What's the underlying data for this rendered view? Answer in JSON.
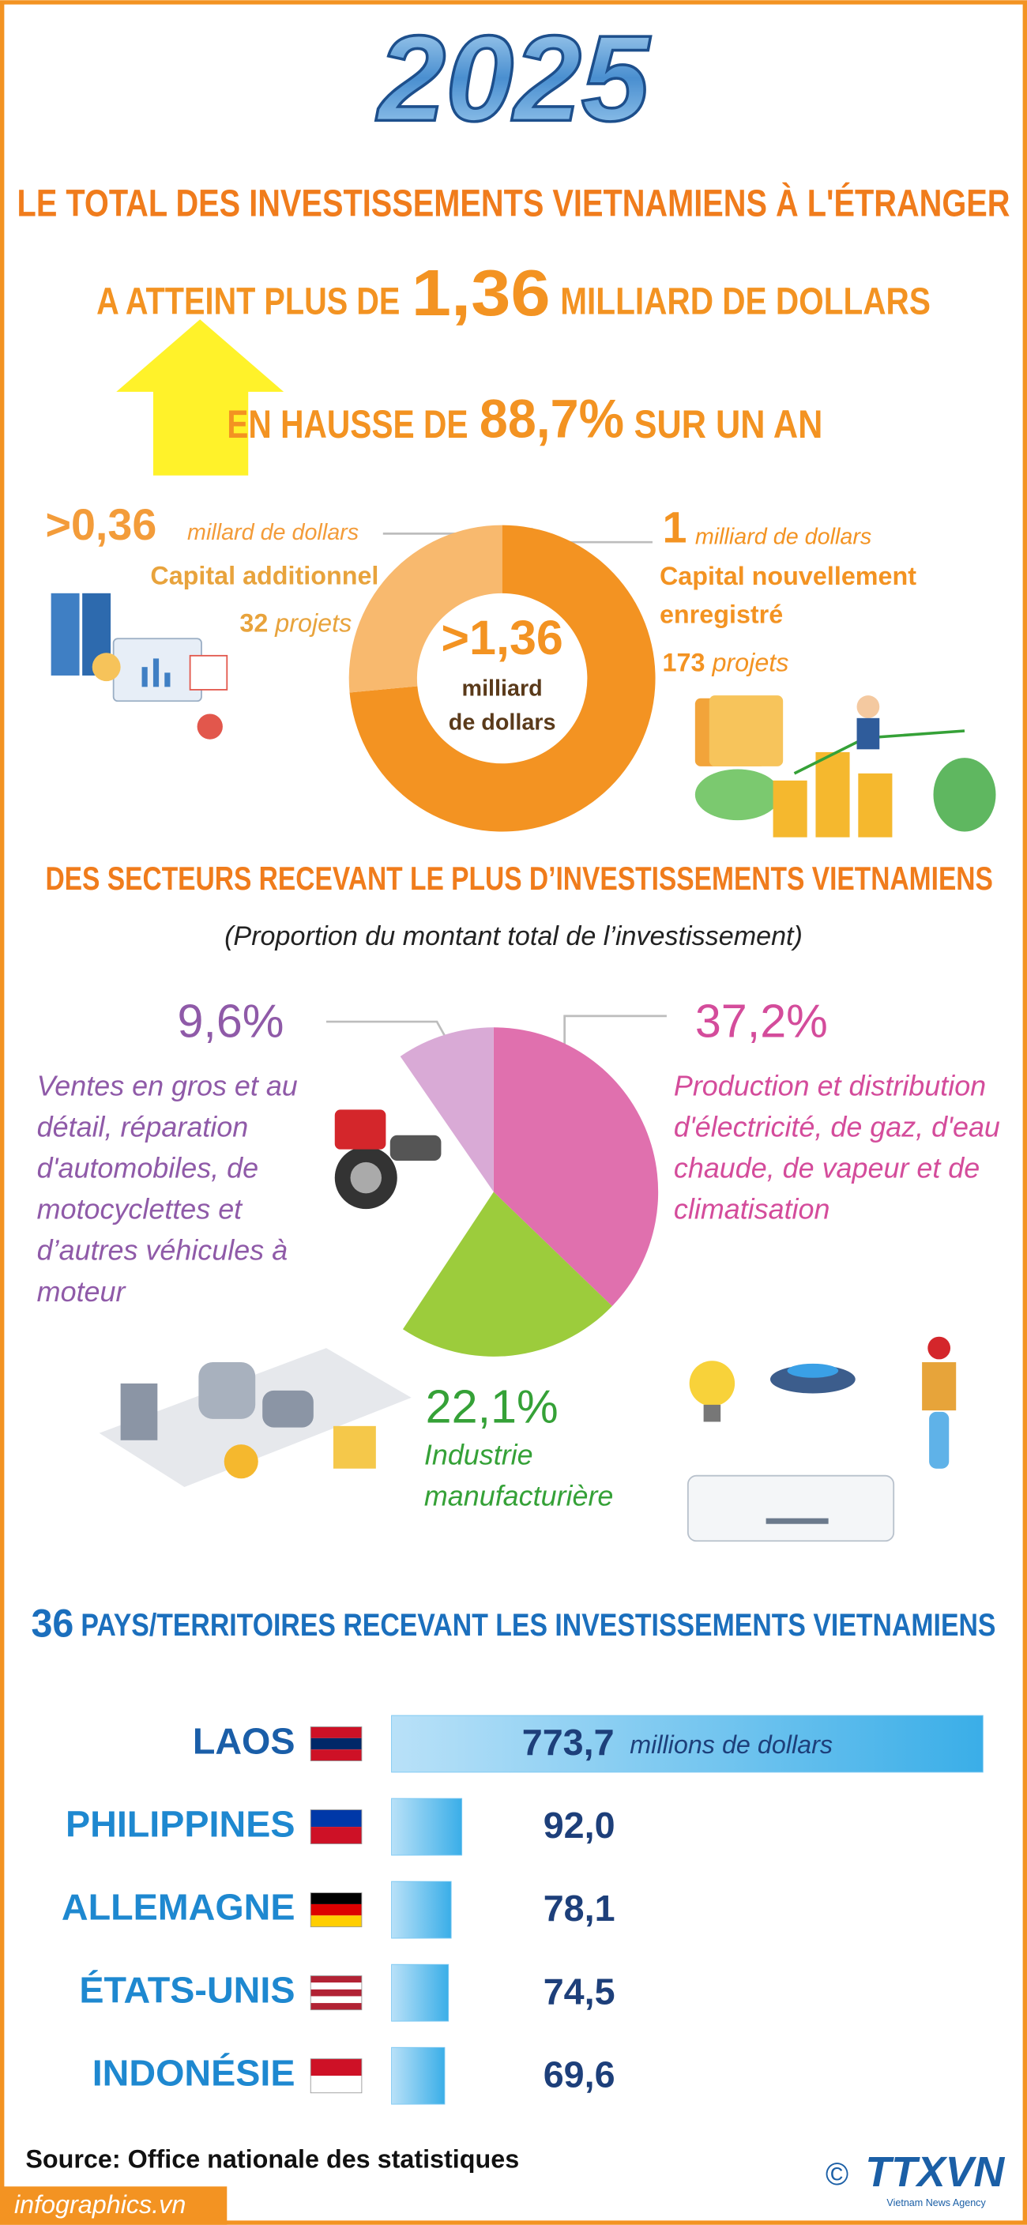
{
  "header": {
    "year": "2025",
    "title": "LE TOTAL DES INVESTISSEMENTS VIETNAMIENS À L'ÉTRANGER",
    "line2_prefix": "A ATTEINT PLUS DE",
    "line2_value": "1,36",
    "line2_suffix": "MILLIARD DE DOLLARS",
    "line3_prefix": "EN HAUSSE DE",
    "line3_value": "88,7%",
    "line3_suffix": "SUR UN AN"
  },
  "chart_data": [
    {
      "type": "donut",
      "center_value": ">1,36",
      "center_unit_lines": [
        "milliard",
        "de dollars"
      ],
      "categories": [
        "Capital additionnel",
        "Capital nouvellement enregistré"
      ],
      "values": [
        0.36,
        1
      ],
      "value_labels": [
        ">0,36",
        "1"
      ],
      "units": [
        "millard de dollars",
        "milliard de dollars"
      ],
      "projects": [
        32,
        173
      ],
      "projects_label": "projets",
      "colors": [
        "#f8b96e",
        "#f39322"
      ]
    },
    {
      "type": "pie",
      "title": "DES SECTEURS RECEVANT LE PLUS D’INVESTISSEMENTS VIETNAMIENS",
      "subtitle": "(Proportion du montant total de l’investissement)",
      "categories": [
        "Production et distribution d'électricité, de gaz, d'eau chaude, de vapeur et de climatisation",
        "Industrie manufacturière",
        "Ventes en gros et au détail, réparation d'automobiles, de motocyclettes et d’autres véhicules à moteur"
      ],
      "values": [
        37.2,
        22.1,
        9.6
      ],
      "value_labels": [
        "37,2%",
        "22,1%",
        "9,6%"
      ],
      "colors": [
        "#e070ae",
        "#9ccc3c",
        "#d9aad6"
      ],
      "label_colors": [
        "#d44c9b",
        "#35a137",
        "#8f5aa8"
      ]
    },
    {
      "type": "bar",
      "title_value": "36",
      "title": "PAYS/TERRITOIRES RECEVANT LES INVESTISSEMENTS VIETNAMIENS",
      "categories": [
        "LAOS",
        "PHILIPPINES",
        "ALLEMAGNE",
        "ÉTATS-UNIS",
        "INDONÉSIE"
      ],
      "values": [
        773.7,
        92.0,
        78.1,
        74.5,
        69.6
      ],
      "value_labels": [
        "773,7",
        "92,0",
        "78,1",
        "74,5",
        "69,6"
      ],
      "unit": "millions de dollars",
      "color": "#7cc8f2"
    }
  ],
  "footer": {
    "source": "Source: Office nationale des statistiques",
    "site": "infographics.vn",
    "copyright": "©",
    "logo": "TTXVN",
    "agency": "Vietnam News Agency"
  }
}
